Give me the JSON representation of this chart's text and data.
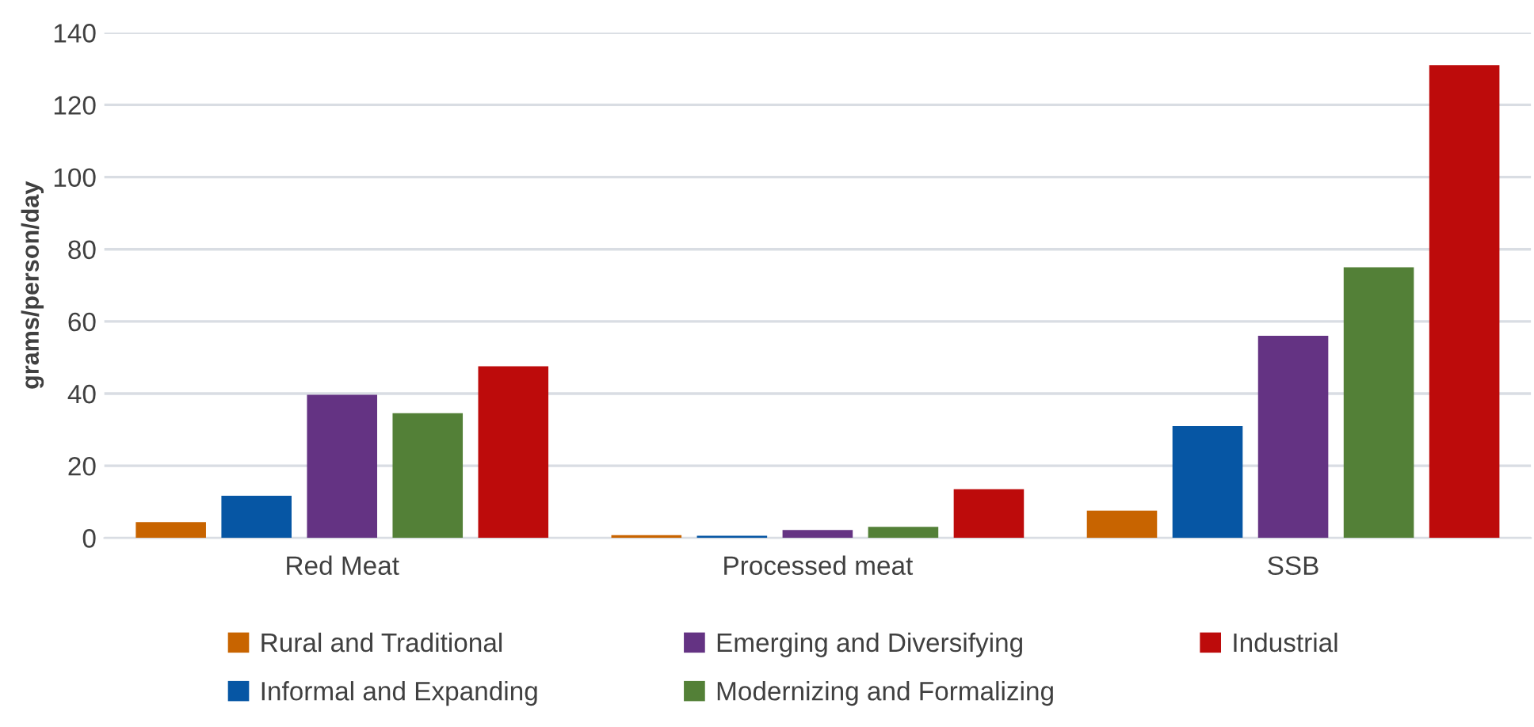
{
  "chart_data": {
    "type": "bar",
    "ylabel": "grams/person/day",
    "categories": [
      "Red Meat",
      "Processed meat",
      "SSB"
    ],
    "series": [
      {
        "name": "Rural and Traditional",
        "color": "#c86400",
        "values": [
          4.4,
          0.8,
          7.6
        ]
      },
      {
        "name": "Informal and Expanding",
        "color": "#0656a4",
        "values": [
          11.7,
          0.6,
          31
        ]
      },
      {
        "name": "Emerging and Diversifying",
        "color": "#643383",
        "values": [
          39.7,
          2.2,
          56
        ]
      },
      {
        "name": "Modernizing and Formalizing",
        "color": "#538037",
        "values": [
          34.6,
          3.1,
          75
        ]
      },
      {
        "name": "Industrial",
        "color": "#bd0b0b",
        "values": [
          47.6,
          13.5,
          131
        ]
      }
    ],
    "ylim": [
      0,
      140
    ],
    "yticks": [
      0,
      20,
      40,
      60,
      80,
      100,
      120,
      140
    ],
    "grid": "y",
    "legend": "bottom"
  }
}
